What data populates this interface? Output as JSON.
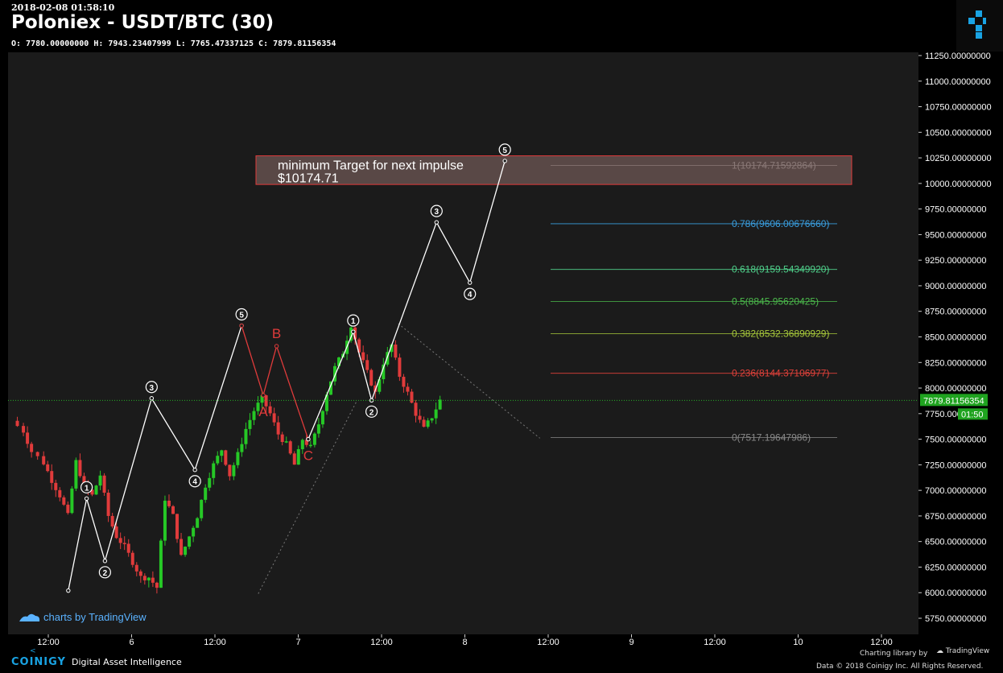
{
  "header": {
    "timestamp": "2018-02-08 01:58:10",
    "title": "Poloniex - USDT/BTC (30)",
    "ohlc": "O: 7780.00000000 H: 7943.23407999 L: 7765.47337125 C: 7879.81156354",
    "logo_icon": "coinigy-cube-icon"
  },
  "chart_data": {
    "type": "candlestick",
    "title": "Poloniex - USDT/BTC (30)",
    "xlabel": "",
    "ylabel": "",
    "ylim": [
      5650,
      11300
    ],
    "y_ticks": [
      "11250.00000000",
      "11000.00000000",
      "10750.00000000",
      "10500.00000000",
      "10250.00000000",
      "10000.00000000",
      "9750.00000000",
      "9500.00000000",
      "9250.00000000",
      "9000.00000000",
      "8750.00000000",
      "8500.00000000",
      "8250.00000000",
      "8000.00000000",
      "7750.00000000",
      "7500.00000000",
      "7250.00000000",
      "7000.00000000",
      "6750.00000000",
      "6500.00000000",
      "6250.00000000",
      "6000.00000000",
      "5750.00000000"
    ],
    "x_ticks": [
      "12:00",
      "6",
      "12:00",
      "7",
      "12:00",
      "8",
      "12:00",
      "9",
      "12:00",
      "10",
      "12:00"
    ],
    "last_price": "7879.81156354",
    "countdown": "01:50",
    "price_path": [
      [
        0,
        7680
      ],
      [
        1.5,
        7580
      ],
      [
        2.5,
        7380
      ],
      [
        4,
        7270
      ],
      [
        5,
        7100
      ],
      [
        6,
        6950
      ],
      [
        7,
        6750
      ],
      [
        8,
        7280
      ],
      [
        9,
        7050
      ],
      [
        10,
        6950
      ],
      [
        11,
        7150
      ],
      [
        12,
        6750
      ],
      [
        13,
        6550
      ],
      [
        14,
        6450
      ],
      [
        15,
        6300
      ],
      [
        16,
        6150
      ],
      [
        17,
        6150
      ],
      [
        18,
        6050
      ],
      [
        19,
        6920
      ],
      [
        20,
        6750
      ],
      [
        21,
        6350
      ],
      [
        22,
        6550
      ],
      [
        23,
        6750
      ],
      [
        24,
        7050
      ],
      [
        25,
        7250
      ],
      [
        26,
        7400
      ],
      [
        27,
        7150
      ],
      [
        28,
        7350
      ],
      [
        29,
        7600
      ],
      [
        30,
        7780
      ],
      [
        31,
        7900
      ],
      [
        32,
        7750
      ],
      [
        33,
        7550
      ],
      [
        34,
        7450
      ],
      [
        35,
        7250
      ],
      [
        36,
        7500
      ],
      [
        37,
        7420
      ],
      [
        38,
        7650
      ],
      [
        39,
        7950
      ],
      [
        40,
        8200
      ],
      [
        41,
        8350
      ],
      [
        42,
        8620
      ],
      [
        43,
        8350
      ],
      [
        44,
        8150
      ],
      [
        45,
        7950
      ],
      [
        46,
        8250
      ],
      [
        47,
        8420
      ],
      [
        48,
        8120
      ],
      [
        49,
        7950
      ],
      [
        50,
        7750
      ],
      [
        51,
        7600
      ],
      [
        52,
        7720
      ],
      [
        53,
        7880
      ]
    ],
    "fibonacci": [
      {
        "label": "1(10174.71592864)",
        "value": 10174.71592864,
        "color": "#888888"
      },
      {
        "label": "0.786(9606.00676660)",
        "value": 9606.0067666,
        "color": "#3a9fe0"
      },
      {
        "label": "0.618(9159.54349920)",
        "value": 9159.5434992,
        "color": "#4fd18b"
      },
      {
        "label": "0.5(8845.95620425)",
        "value": 8845.95620425,
        "color": "#4cbb4c"
      },
      {
        "label": "0.382(8532.36890929)",
        "value": 8532.36890929,
        "color": "#a7c93a"
      },
      {
        "label": "0.236(8144.37106977)",
        "value": 8144.37106977,
        "color": "#e0413a"
      },
      {
        "label": "0(7517.19647986)",
        "value": 7517.19647986,
        "color": "#888888"
      }
    ],
    "target_box": {
      "line1": "minimum Target for next impulse",
      "line2": "$10174.71",
      "top_value": 10270,
      "bottom_value": 9990
    },
    "elliott_past": [
      {
        "label": "",
        "x": 0.62,
        "y": 6020
      },
      {
        "label": "1",
        "x": 0.73,
        "y": 6920
      },
      {
        "label": "2",
        "x": 0.84,
        "y": 6310
      },
      {
        "label": "3",
        "x": 1.12,
        "y": 7900
      },
      {
        "label": "4",
        "x": 1.38,
        "y": 7200
      },
      {
        "label": "5",
        "x": 1.66,
        "y": 8610
      }
    ],
    "abc": [
      {
        "label": "",
        "x": 1.66,
        "y": 8610
      },
      {
        "label": "A",
        "x": 1.79,
        "y": 7930
      },
      {
        "label": "B",
        "x": 1.87,
        "y": 8410
      },
      {
        "label": "C",
        "x": 2.06,
        "y": 7500
      }
    ],
    "projection": [
      {
        "label": "",
        "x": 2.06,
        "y": 7500
      },
      {
        "label": "1",
        "x": 2.33,
        "y": 8550
      },
      {
        "label": "2",
        "x": 2.44,
        "y": 7880
      },
      {
        "label": "3",
        "x": 2.83,
        "y": 9620
      },
      {
        "label": "4",
        "x": 3.03,
        "y": 9030
      },
      {
        "label": "5",
        "x": 3.24,
        "y": 10220
      }
    ],
    "dotted_lines": [
      [
        [
          1.76,
          5990
        ],
        [
          2.35,
          7870
        ]
      ],
      [
        [
          2.6,
          8630
        ],
        [
          3.45,
          7510
        ]
      ]
    ]
  },
  "watermark": {
    "text": "charts by TradingView",
    "icon": "tradingview-cloud-icon"
  },
  "footer": {
    "brand": "COINIGY",
    "brand_icon": "coinigy-arrow-icon",
    "tagline": "Digital Asset Intelligence",
    "library_text": "Charting library by",
    "library_brand": "TradingView",
    "copyright": "Data © 2018 Coinigy Inc. All Rights Reserved."
  },
  "colors": {
    "background": "#1b1b1b",
    "up": "#26c826",
    "down": "#e03b3b",
    "wave": "#ffffff",
    "correction": "#e03b3b",
    "price_line": "#26c826",
    "accent": "#19a3e3"
  }
}
